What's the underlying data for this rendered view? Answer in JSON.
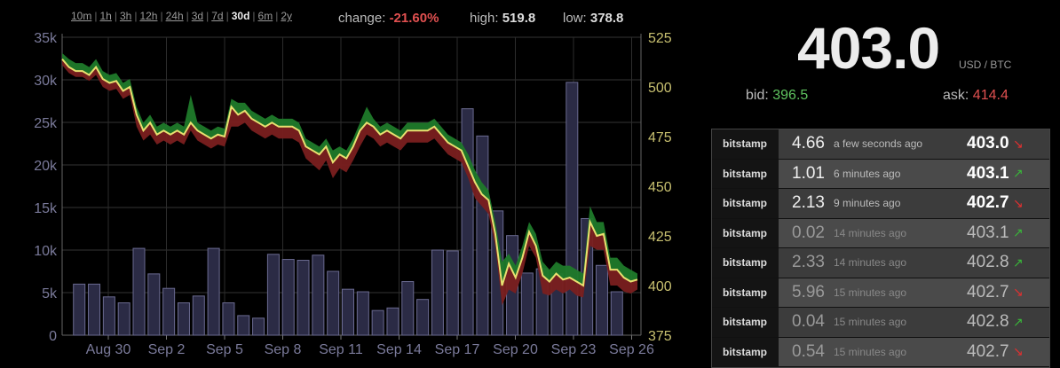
{
  "ranges": [
    "10m",
    "1h",
    "3h",
    "12h",
    "24h",
    "3d",
    "7d",
    "30d",
    "6m",
    "2y"
  ],
  "active_range": "30d",
  "stats": {
    "change_label": "change:",
    "change_value": "-21.60%",
    "high_label": "high:",
    "high_value": "519.8",
    "low_label": "low:",
    "low_value": "378.8"
  },
  "ticker": {
    "price": "403.0",
    "unit": "USD / BTC",
    "bid_label": "bid:",
    "bid_value": "396.5",
    "ask_label": "ask:",
    "ask_value": "414.4"
  },
  "trades": [
    {
      "exchange": "bitstamp",
      "amount": "4.66",
      "ago": "a few seconds ago",
      "price": "403.0",
      "dir": "down"
    },
    {
      "exchange": "bitstamp",
      "amount": "1.01",
      "ago": "6 minutes ago",
      "price": "403.1",
      "dir": "up"
    },
    {
      "exchange": "bitstamp",
      "amount": "2.13",
      "ago": "9 minutes ago",
      "price": "402.7",
      "dir": "down"
    },
    {
      "exchange": "bitstamp",
      "amount": "0.02",
      "ago": "14 minutes ago",
      "price": "403.1",
      "dir": "up"
    },
    {
      "exchange": "bitstamp",
      "amount": "2.33",
      "ago": "14 minutes ago",
      "price": "402.8",
      "dir": "up"
    },
    {
      "exchange": "bitstamp",
      "amount": "5.96",
      "ago": "15 minutes ago",
      "price": "402.7",
      "dir": "down"
    },
    {
      "exchange": "bitstamp",
      "amount": "0.04",
      "ago": "15 minutes ago",
      "price": "402.8",
      "dir": "up"
    },
    {
      "exchange": "bitstamp",
      "amount": "0.54",
      "ago": "15 minutes ago",
      "price": "402.7",
      "dir": "down"
    }
  ],
  "colors": {
    "up": "#39b739",
    "down": "#e03030",
    "line": "#e8e070",
    "bullband": "#1f7a2a",
    "bearband": "#7a1f1f",
    "volume": "#2b2b45"
  },
  "chart_data": {
    "type": "line",
    "x_ticks": [
      "Aug 30",
      "Sep 2",
      "Sep 5",
      "Sep 8",
      "Sep 11",
      "Sep 14",
      "Sep 17",
      "Sep 20",
      "Sep 23",
      "Sep 26"
    ],
    "y_left_ticks": [
      "0",
      "5k",
      "10k",
      "15k",
      "20k",
      "25k",
      "30k",
      "35k"
    ],
    "y_right_ticks": [
      "375",
      "400",
      "425",
      "450",
      "475",
      "500",
      "525"
    ],
    "ylim_volume": [
      0,
      35000
    ],
    "ylim_price": [
      375,
      525
    ],
    "price_close": [
      514,
      510,
      508,
      508,
      506,
      510,
      504,
      502,
      503,
      498,
      500,
      486,
      478,
      482,
      476,
      478,
      476,
      478,
      476,
      482,
      478,
      476,
      474,
      476,
      475,
      490,
      486,
      488,
      484,
      482,
      480,
      482,
      480,
      480,
      480,
      478,
      470,
      468,
      466,
      470,
      462,
      466,
      464,
      470,
      478,
      482,
      480,
      476,
      478,
      476,
      474,
      478,
      478,
      478,
      478,
      480,
      476,
      472,
      470,
      468,
      460,
      452,
      446,
      443,
      426,
      400,
      411,
      404,
      414,
      427,
      420,
      405,
      402,
      406,
      403,
      404,
      402,
      400,
      432,
      425,
      426,
      408,
      408,
      404,
      402,
      403
    ],
    "price_high": [
      517,
      514,
      512,
      512,
      510,
      514,
      508,
      506,
      507,
      502,
      504,
      490,
      482,
      486,
      480,
      482,
      480,
      482,
      480,
      496,
      482,
      480,
      478,
      480,
      479,
      494,
      492,
      492,
      488,
      486,
      484,
      486,
      484,
      484,
      484,
      482,
      474,
      472,
      470,
      474,
      468,
      470,
      468,
      474,
      482,
      490,
      484,
      480,
      482,
      480,
      478,
      482,
      482,
      482,
      482,
      484,
      480,
      476,
      474,
      472,
      466,
      458,
      452,
      448,
      432,
      412,
      416,
      410,
      420,
      432,
      426,
      412,
      408,
      412,
      410,
      410,
      408,
      406,
      440,
      432,
      432,
      414,
      414,
      410,
      408,
      406
    ],
    "price_low": [
      511,
      507,
      505,
      505,
      503,
      506,
      500,
      498,
      499,
      494,
      496,
      480,
      473,
      476,
      471,
      473,
      471,
      473,
      471,
      478,
      473,
      471,
      469,
      471,
      470,
      480,
      480,
      482,
      478,
      476,
      474,
      476,
      474,
      474,
      474,
      472,
      464,
      461,
      458,
      463,
      454,
      459,
      457,
      463,
      470,
      476,
      474,
      470,
      472,
      470,
      468,
      472,
      472,
      472,
      472,
      474,
      470,
      466,
      464,
      462,
      454,
      444,
      440,
      436,
      420,
      390,
      398,
      396,
      406,
      420,
      414,
      396,
      395,
      398,
      396,
      398,
      395,
      394,
      420,
      418,
      418,
      400,
      400,
      397,
      396,
      398
    ],
    "volume": [
      6000,
      6000,
      4500,
      3800,
      10200,
      7200,
      5500,
      3800,
      4600,
      10200,
      3800,
      2300,
      2000,
      9500,
      8900,
      8800,
      9400,
      7500,
      5400,
      5100,
      2900,
      3200,
      6300,
      4200,
      10000,
      9900,
      26600,
      23400,
      14600,
      11700,
      7300,
      7800,
      7200,
      29700,
      13700,
      8200,
      5100
    ],
    "volume_x": [
      0.6,
      1.5,
      2.4,
      3.3,
      4.2,
      5.1,
      6.0,
      6.9,
      7.8,
      8.7,
      9.6,
      10.5,
      11.4,
      12.3,
      13.2,
      14.1,
      15.0,
      15.9,
      16.8,
      17.7,
      18.6,
      19.5,
      20.4,
      21.3,
      22.2,
      23.1,
      24.0,
      24.9,
      25.8,
      26.7,
      27.6,
      28.5,
      29.4,
      30.3,
      31.2,
      32.1,
      33.0
    ]
  }
}
